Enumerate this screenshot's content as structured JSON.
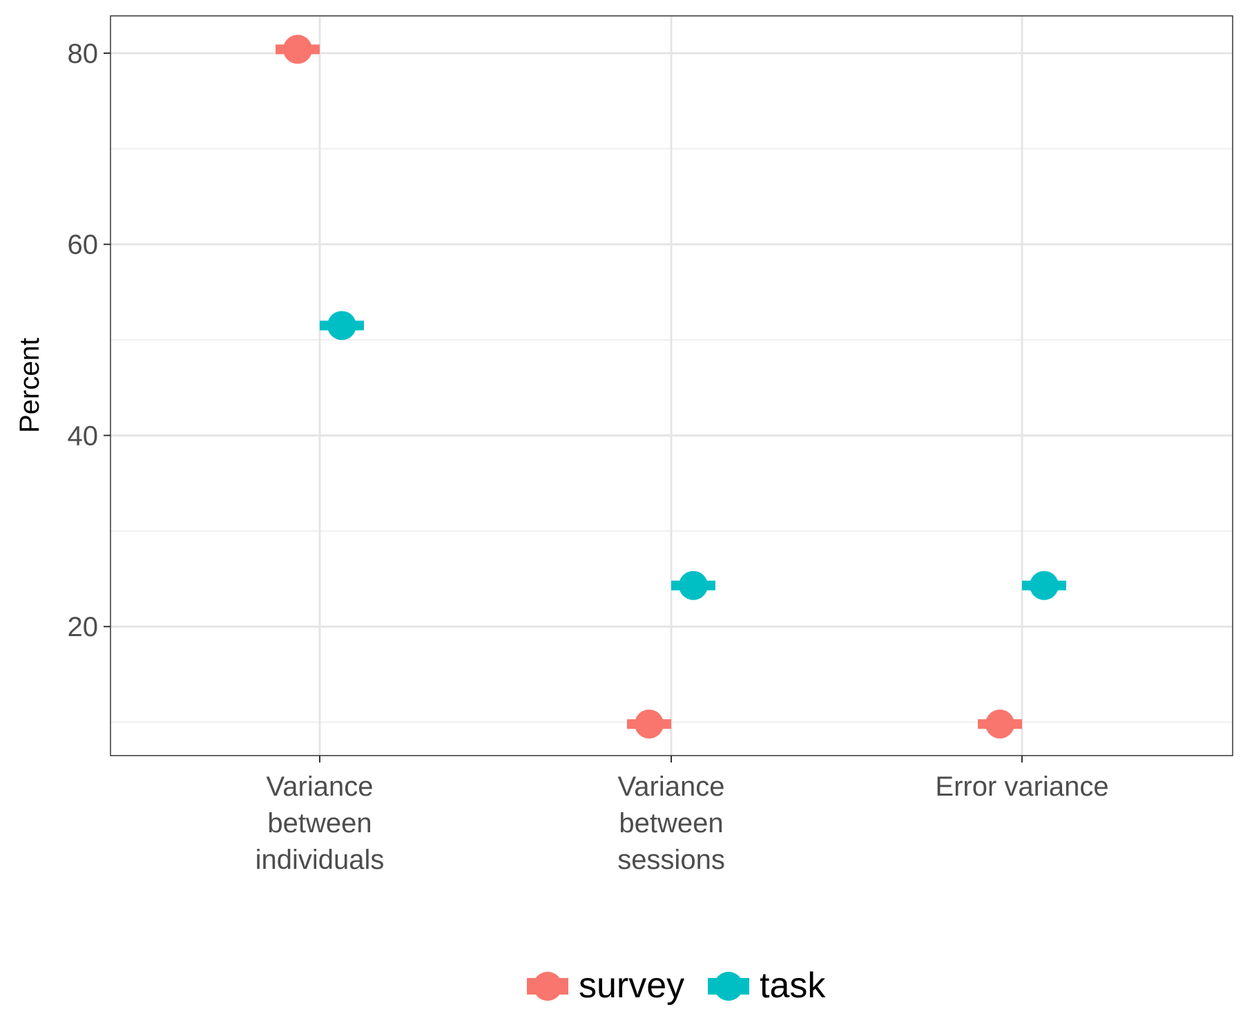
{
  "chart_data": {
    "type": "scatter",
    "title": "",
    "xlabel": "",
    "ylabel": "Percent",
    "ylim": [
      6.5,
      83.9
    ],
    "yticks": [
      20,
      40,
      60,
      80
    ],
    "grid": true,
    "legend_position": "bottom",
    "categories": [
      [
        "Variance",
        "between",
        "individuals"
      ],
      [
        "Variance",
        "between",
        "sessions"
      ],
      [
        "Error variance"
      ]
    ],
    "series": [
      {
        "name": "survey",
        "color": "#F8766D",
        "values": [
          80.4,
          9.8,
          9.8
        ],
        "error_low": [
          80.0,
          9.4,
          9.4
        ],
        "error_high": [
          80.8,
          10.2,
          10.2
        ]
      },
      {
        "name": "task",
        "color": "#00BFC4",
        "values": [
          51.5,
          24.3,
          24.3
        ],
        "error_low": [
          51.1,
          23.9,
          23.9
        ],
        "error_high": [
          51.9,
          24.7,
          24.7
        ]
      }
    ]
  }
}
